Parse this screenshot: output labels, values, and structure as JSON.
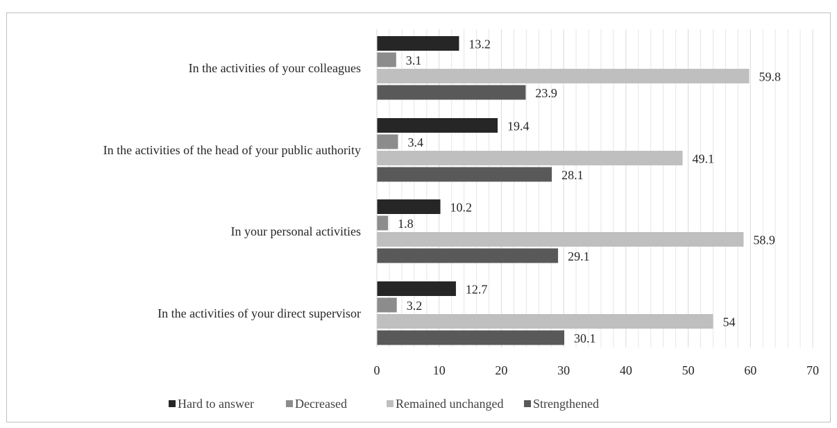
{
  "header": {
    "text": ""
  },
  "chart_data": {
    "type": "bar",
    "orientation": "horizontal",
    "categories": [
      "In the activities of your colleagues",
      "In the activities of the head of your public authority",
      "In your personal activities",
      "In the activities of your direct supervisor"
    ],
    "series": [
      {
        "name": "Hard to answer",
        "color": "#262626",
        "values": [
          13.2,
          19.4,
          10.2,
          12.7
        ],
        "labels": [
          "13.2",
          "19.4",
          "10.2",
          "12.7"
        ]
      },
      {
        "name": "Decreased",
        "color": "#8c8c8c",
        "values": [
          3.1,
          3.4,
          1.8,
          3.2
        ],
        "labels": [
          "3.1",
          "3.4",
          "1.8",
          "3.2"
        ]
      },
      {
        "name": "Remained unchanged",
        "color": "#bfbfbf",
        "values": [
          59.8,
          49.1,
          58.9,
          54
        ],
        "labels": [
          "59.8",
          "49.1",
          "58.9",
          "54"
        ]
      },
      {
        "name": "Strengthened",
        "color": "#595959",
        "values": [
          23.9,
          28.1,
          29.1,
          30.1
        ],
        "labels": [
          "23.9",
          "28.1",
          "29.1",
          "30.1"
        ]
      }
    ],
    "xlim": [
      0,
      70
    ],
    "x_ticks": [
      "0",
      "10",
      "20",
      "30",
      "40",
      "50",
      "60",
      "70"
    ],
    "major_grid": true,
    "minor_grid": true,
    "legend_position": "bottom"
  }
}
